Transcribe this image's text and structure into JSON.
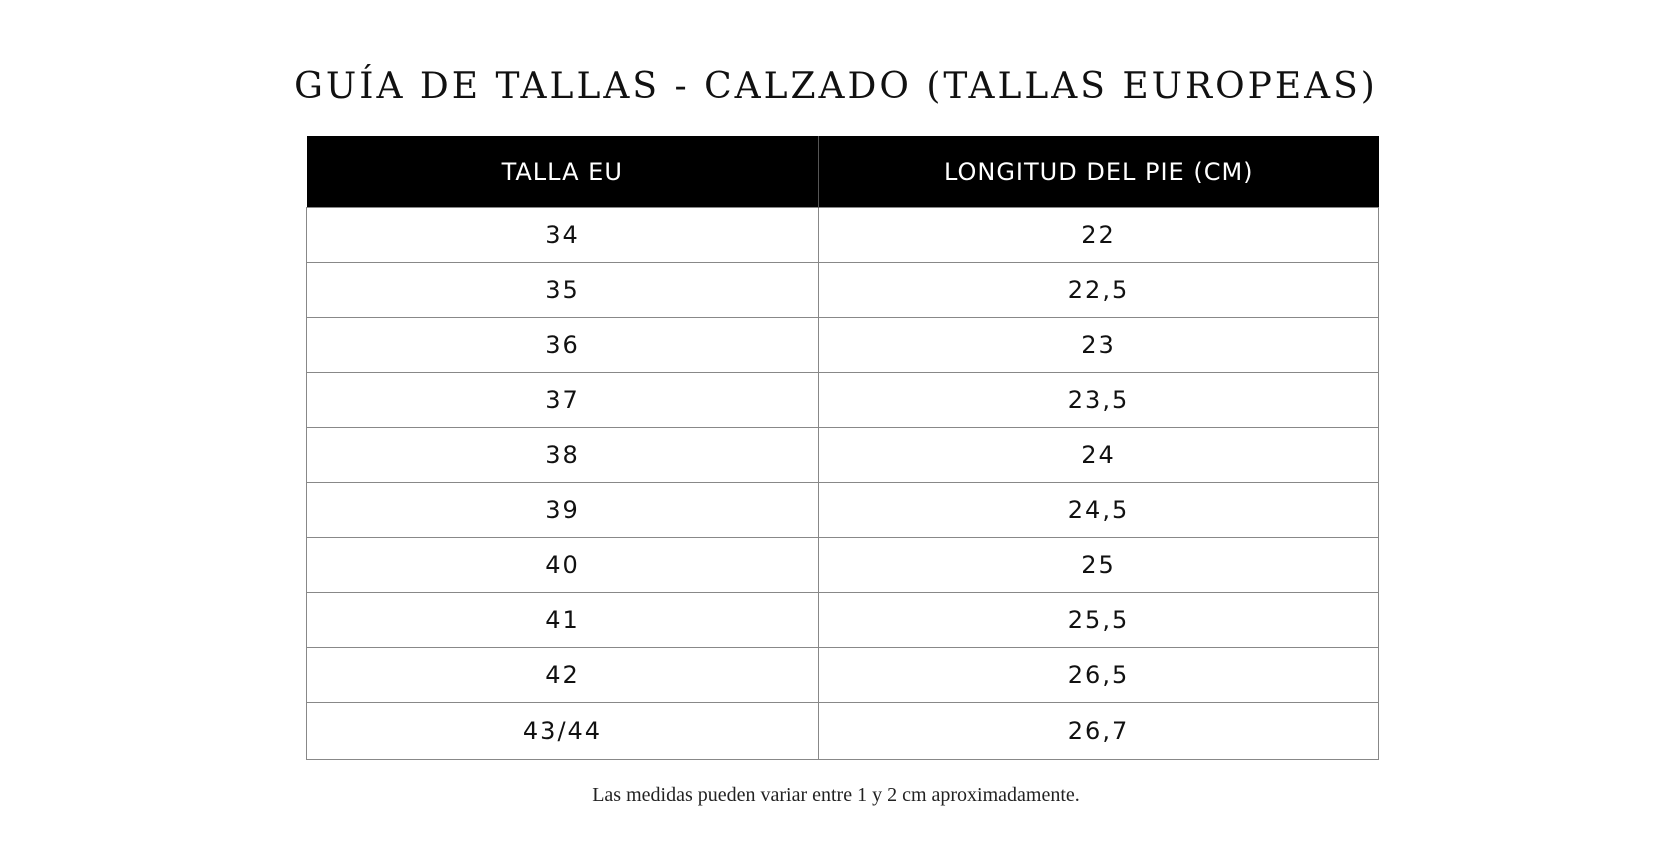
{
  "title": "GUÍA DE TALLAS - CALZADO (TALLAS EUROPEAS)",
  "table": {
    "headers": [
      "TALLA EU",
      "LONGITUD DEL PIE (CM)"
    ],
    "rows": [
      [
        "34",
        "22"
      ],
      [
        "35",
        "22,5"
      ],
      [
        "36",
        "23"
      ],
      [
        "37",
        "23,5"
      ],
      [
        "38",
        "24"
      ],
      [
        "39",
        "24,5"
      ],
      [
        "40",
        "25"
      ],
      [
        "41",
        "25,5"
      ],
      [
        "42",
        "26,5"
      ],
      [
        "43/44",
        "26,7"
      ]
    ]
  },
  "note": "Las medidas pueden variar entre 1 y 2 cm aproximadamente.",
  "colors": {
    "header_background": "#000000",
    "header_text": "#ffffff",
    "border": "#888888"
  }
}
